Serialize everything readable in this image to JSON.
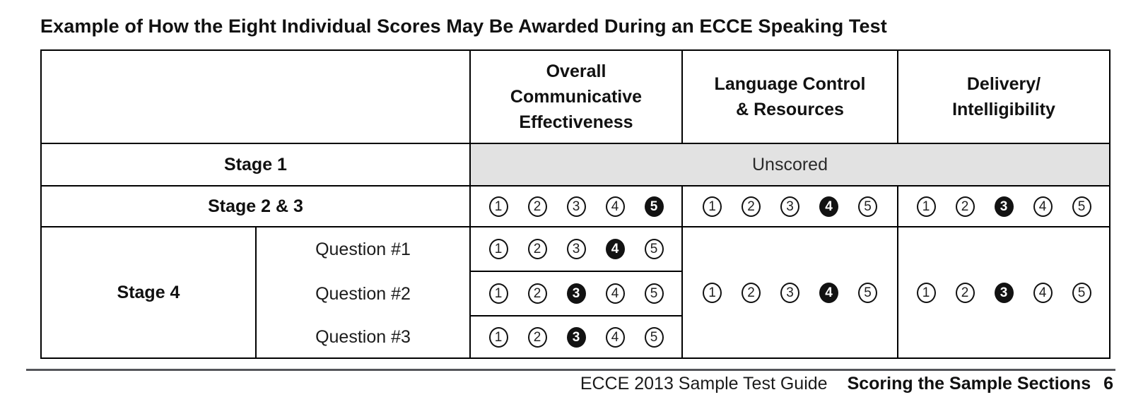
{
  "title": "Example of How the Eight Individual Scores May Be Awarded During an ECCE Speaking Test",
  "columns": {
    "oce": {
      "lines": [
        "Overall",
        "Communicative",
        "Effectiveness"
      ]
    },
    "lcr": {
      "lines": [
        "Language Control",
        "& Resources"
      ]
    },
    "di": {
      "lines": [
        "Delivery/",
        "Intelligibility"
      ]
    }
  },
  "scale": {
    "min": 1,
    "max": 5
  },
  "rows": {
    "stage1": {
      "label": "Stage 1",
      "value": "Unscored"
    },
    "stage23": {
      "label": "Stage 2 & 3",
      "scores": {
        "oce": 5,
        "lcr": 4,
        "di": 3
      }
    },
    "stage4": {
      "label": "Stage 4",
      "questions": [
        {
          "label": "Question #1",
          "oce": 4
        },
        {
          "label": "Question #2",
          "oce": 3
        },
        {
          "label": "Question #3",
          "oce": 3
        }
      ],
      "scores": {
        "lcr": 4,
        "di": 3
      }
    }
  },
  "footer": {
    "guide": "ECCE 2013 Sample Test Guide",
    "section": "Scoring the Sample Sections",
    "page": "6"
  },
  "colors": {
    "unscored_bg": "#e2e2e2",
    "border": "#000000",
    "footer_rule": "#55565a",
    "filled_circle": "#121212"
  }
}
